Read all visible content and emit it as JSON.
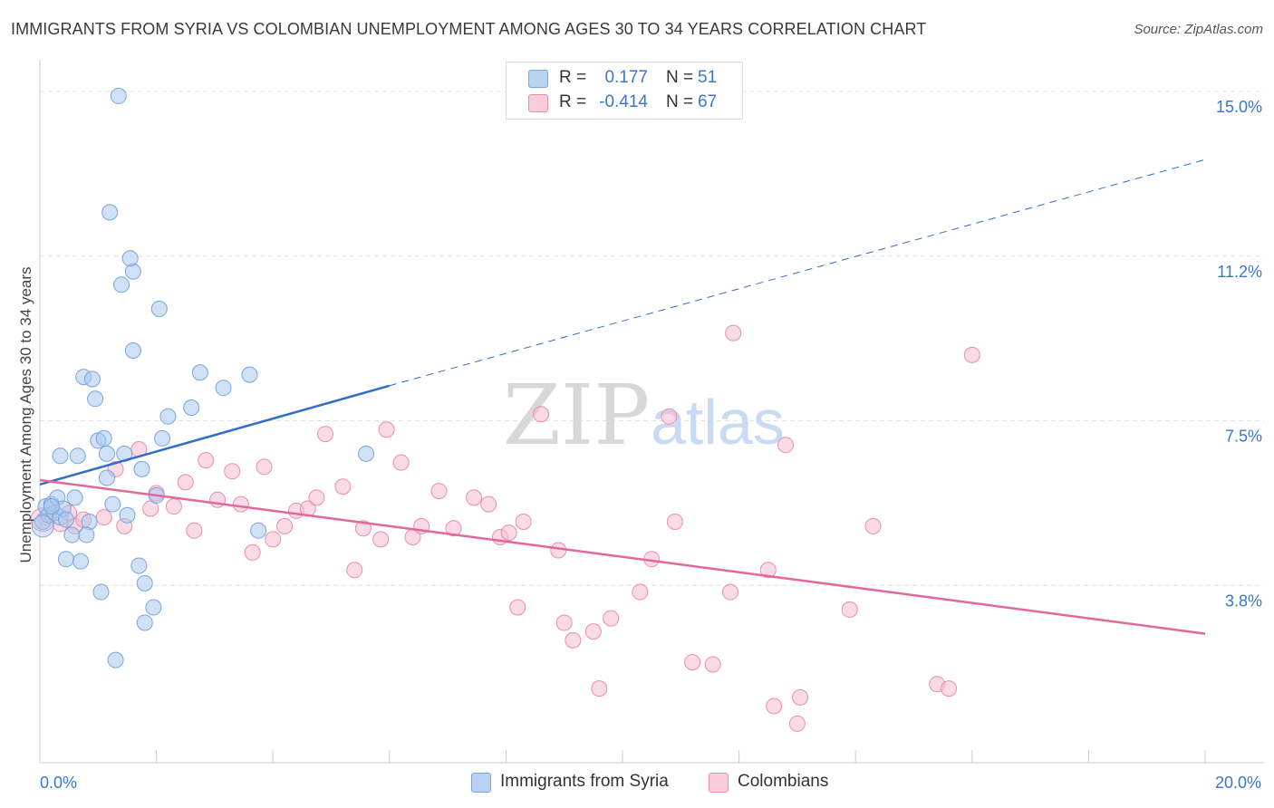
{
  "title": "IMMIGRANTS FROM SYRIA VS COLOMBIAN UNEMPLOYMENT AMONG AGES 30 TO 34 YEARS CORRELATION CHART",
  "source": "Source: ZipAtlas.com",
  "watermark": "ZIPatlas",
  "legend": {
    "rows": [
      {
        "r_label": "R =",
        "r_value": "0.177",
        "n_label": "N =",
        "n_value": "51"
      },
      {
        "r_label": "R =",
        "r_value": "-0.414",
        "n_label": "N =",
        "n_value": "67"
      }
    ]
  },
  "bottom_legend": [
    "Immigrants from Syria",
    "Colombians"
  ],
  "colors": {
    "syria_fill": "#a9c8ee",
    "syria_stroke": "#7aa5dd",
    "syria_line": "#2f6fc8",
    "colombia_fill": "#f6bcd0",
    "colombia_stroke": "#ea8eae",
    "colombia_line": "#e4679a",
    "tick_label": "#3b77c9",
    "grid": "#e2e2e2"
  },
  "chart_data": {
    "type": "scatter",
    "title": "IMMIGRANTS FROM SYRIA VS COLOMBIAN UNEMPLOYMENT AMONG AGES 30 TO 34 YEARS CORRELATION CHART",
    "xlabel": "",
    "ylabel": "Unemployment Among Ages 30 to 34 years",
    "xlim": [
      0,
      20
    ],
    "ylim": [
      0,
      15.6
    ],
    "x_tick_labels": [
      {
        "value": 0,
        "label": "0.0%"
      },
      {
        "value": 20,
        "label": "20.0%"
      }
    ],
    "y_tick_labels": [
      {
        "value": 3.75,
        "label": "3.8%"
      },
      {
        "value": 7.5,
        "label": "7.5%"
      },
      {
        "value": 11.25,
        "label": "11.2%"
      },
      {
        "value": 15.0,
        "label": "15.0%"
      }
    ],
    "grid": true,
    "series": [
      {
        "name": "Immigrants from Syria",
        "r": 0.177,
        "n": 51,
        "trend": {
          "x0": 0,
          "y0": 6.05,
          "x1": 6.0,
          "y1": 8.3,
          "dashed_to_x": 20,
          "dashed_to_y": 13.45
        },
        "points": [
          [
            0.05,
            5.2
          ],
          [
            0.1,
            5.55
          ],
          [
            0.15,
            5.35
          ],
          [
            0.2,
            5.6
          ],
          [
            0.25,
            5.4
          ],
          [
            0.3,
            5.75
          ],
          [
            0.35,
            5.3
          ],
          [
            0.4,
            5.5
          ],
          [
            0.45,
            5.25
          ],
          [
            0.35,
            6.7
          ],
          [
            0.6,
            5.75
          ],
          [
            0.55,
            4.9
          ],
          [
            0.45,
            4.35
          ],
          [
            0.7,
            4.3
          ],
          [
            0.65,
            6.7
          ],
          [
            0.85,
            5.2
          ],
          [
            0.75,
            8.5
          ],
          [
            0.9,
            8.45
          ],
          [
            0.95,
            8.0
          ],
          [
            1.0,
            7.05
          ],
          [
            1.1,
            7.1
          ],
          [
            1.15,
            6.75
          ],
          [
            1.15,
            6.2
          ],
          [
            1.25,
            5.6
          ],
          [
            1.3,
            2.05
          ],
          [
            1.05,
            3.6
          ],
          [
            1.45,
            6.75
          ],
          [
            1.5,
            5.35
          ],
          [
            1.6,
            9.1
          ],
          [
            1.7,
            4.2
          ],
          [
            1.75,
            6.4
          ],
          [
            1.8,
            3.8
          ],
          [
            1.95,
            3.25
          ],
          [
            1.8,
            2.9
          ],
          [
            2.0,
            5.8
          ],
          [
            2.1,
            7.1
          ],
          [
            2.2,
            7.6
          ],
          [
            2.6,
            7.8
          ],
          [
            2.75,
            8.6
          ],
          [
            3.15,
            8.25
          ],
          [
            3.6,
            8.55
          ],
          [
            1.4,
            10.6
          ],
          [
            1.6,
            10.9
          ],
          [
            2.05,
            10.05
          ],
          [
            1.2,
            12.25
          ],
          [
            1.35,
            14.9
          ],
          [
            1.55,
            11.2
          ],
          [
            3.75,
            5.0
          ],
          [
            5.6,
            6.75
          ],
          [
            0.8,
            4.9
          ],
          [
            0.2,
            5.55
          ]
        ]
      },
      {
        "name": "Colombians",
        "r": -0.414,
        "n": 67,
        "trend": {
          "x0": 0,
          "y0": 6.15,
          "x1": 20,
          "y1": 2.65
        },
        "points": [
          [
            0.1,
            5.3
          ],
          [
            0.2,
            5.5
          ],
          [
            0.35,
            5.15
          ],
          [
            0.5,
            5.4
          ],
          [
            0.6,
            5.1
          ],
          [
            0.75,
            5.25
          ],
          [
            1.1,
            5.3
          ],
          [
            1.3,
            6.4
          ],
          [
            1.45,
            5.1
          ],
          [
            1.7,
            6.85
          ],
          [
            1.9,
            5.5
          ],
          [
            2.0,
            5.85
          ],
          [
            2.3,
            5.55
          ],
          [
            2.5,
            6.1
          ],
          [
            2.65,
            5.0
          ],
          [
            2.85,
            6.6
          ],
          [
            3.05,
            5.7
          ],
          [
            3.3,
            6.35
          ],
          [
            3.45,
            5.6
          ],
          [
            3.65,
            4.5
          ],
          [
            3.85,
            6.45
          ],
          [
            4.0,
            4.8
          ],
          [
            4.2,
            5.1
          ],
          [
            4.4,
            5.45
          ],
          [
            4.6,
            5.5
          ],
          [
            4.75,
            5.75
          ],
          [
            4.9,
            7.2
          ],
          [
            5.2,
            6.0
          ],
          [
            5.4,
            4.1
          ],
          [
            5.55,
            5.05
          ],
          [
            5.85,
            4.8
          ],
          [
            5.95,
            7.3
          ],
          [
            6.2,
            6.55
          ],
          [
            6.4,
            4.85
          ],
          [
            6.55,
            5.1
          ],
          [
            6.85,
            5.9
          ],
          [
            7.1,
            5.05
          ],
          [
            7.45,
            5.75
          ],
          [
            7.7,
            5.6
          ],
          [
            7.9,
            4.85
          ],
          [
            8.05,
            4.95
          ],
          [
            8.2,
            3.25
          ],
          [
            8.3,
            5.2
          ],
          [
            8.6,
            7.65
          ],
          [
            8.9,
            4.55
          ],
          [
            9.0,
            2.9
          ],
          [
            9.15,
            2.5
          ],
          [
            9.5,
            2.7
          ],
          [
            9.6,
            1.4
          ],
          [
            9.8,
            3.0
          ],
          [
            10.3,
            3.6
          ],
          [
            10.5,
            4.35
          ],
          [
            10.8,
            7.6
          ],
          [
            10.9,
            5.2
          ],
          [
            11.2,
            2.0
          ],
          [
            11.55,
            1.95
          ],
          [
            11.85,
            3.6
          ],
          [
            11.9,
            9.5
          ],
          [
            12.5,
            4.1
          ],
          [
            12.6,
            1.0
          ],
          [
            12.8,
            6.95
          ],
          [
            13.0,
            0.6
          ],
          [
            13.05,
            1.2
          ],
          [
            13.9,
            3.2
          ],
          [
            14.3,
            5.1
          ],
          [
            15.4,
            1.5
          ],
          [
            15.6,
            1.4
          ]
        ]
      }
    ],
    "extra_points": [
      [
        16.0,
        9.0
      ]
    ]
  }
}
